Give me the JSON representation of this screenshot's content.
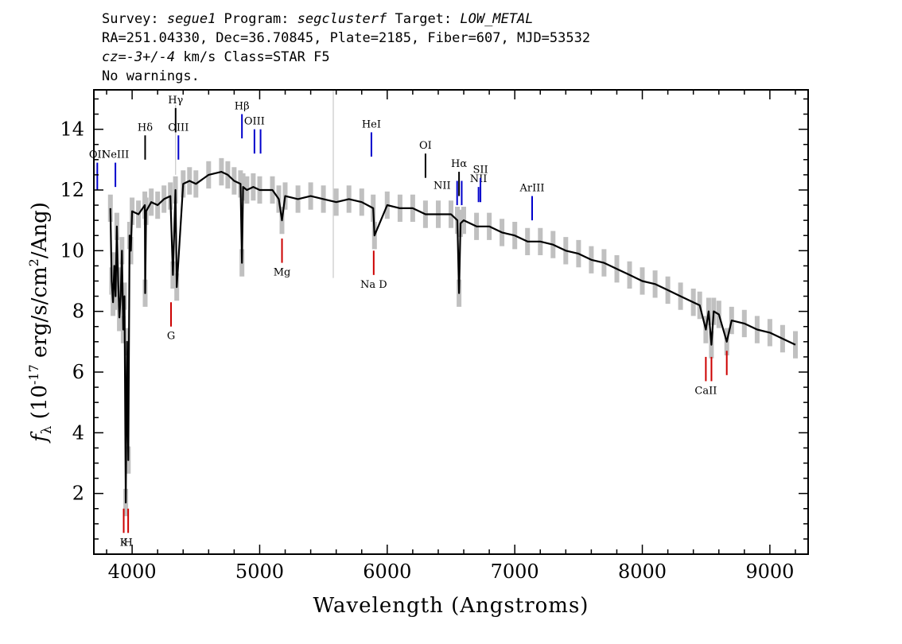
{
  "header": {
    "line1": {
      "survey_label": "Survey: ",
      "survey": "segue1",
      "program_label": " Program: ",
      "program": "segclusterf",
      "target_label": " Target: ",
      "target": "LOW_METAL"
    },
    "line2": "RA=251.04330, Dec=36.70845, Plate=2185, Fiber=607, MJD=53532",
    "line3": {
      "cz": "cz=-3+/-4",
      "rest": " km/s Class=STAR F5"
    },
    "line4": "No warnings."
  },
  "chart_data": {
    "type": "line",
    "title": "",
    "xlabel": "Wavelength (Angstroms)",
    "ylabel": "f_λ (10^-17 erg/s/cm^2/Ang)",
    "xlim": [
      3700,
      9300
    ],
    "ylim": [
      0,
      15.3
    ],
    "xticks": [
      4000,
      5000,
      6000,
      7000,
      8000,
      9000
    ],
    "yticks": [
      2,
      4,
      6,
      8,
      10,
      12,
      14
    ],
    "series": [
      {
        "color": "#000000",
        "x": [
          3830,
          3840,
          3850,
          3860,
          3870,
          3880,
          3890,
          3900,
          3910,
          3920,
          3930,
          3940,
          3950,
          3960,
          3970,
          3980,
          3990,
          4000,
          4050,
          4100,
          4102,
          4110,
          4150,
          4200,
          4250,
          4300,
          4320,
          4340,
          4350,
          4400,
          4450,
          4500,
          4600,
          4700,
          4750,
          4800,
          4850,
          4861,
          4870,
          4900,
          4950,
          5000,
          5100,
          5150,
          5175,
          5200,
          5300,
          5400,
          5500,
          5600,
          5700,
          5800,
          5890,
          5900,
          6000,
          6100,
          6200,
          6300,
          6400,
          6500,
          6550,
          6563,
          6575,
          6600,
          6700,
          6800,
          6900,
          7000,
          7100,
          7200,
          7300,
          7400,
          7500,
          7600,
          7700,
          7800,
          7900,
          8000,
          8100,
          8200,
          8300,
          8400,
          8450,
          8498,
          8520,
          8542,
          8560,
          8600,
          8662,
          8700,
          8800,
          8900,
          9000,
          9100,
          9200
        ],
        "y": [
          11.4,
          9.0,
          8.3,
          9.5,
          8.5,
          10.8,
          9.0,
          7.8,
          8.5,
          10.0,
          7.4,
          8.5,
          1.7,
          7.0,
          3.1,
          10.5,
          10.0,
          11.3,
          11.2,
          11.5,
          8.6,
          11.3,
          11.6,
          11.5,
          11.7,
          11.8,
          9.2,
          12.0,
          8.8,
          12.2,
          12.3,
          12.2,
          12.5,
          12.6,
          12.5,
          12.3,
          12.2,
          9.6,
          12.1,
          12.0,
          12.1,
          12.0,
          12.0,
          11.7,
          11.0,
          11.8,
          11.7,
          11.8,
          11.7,
          11.6,
          11.7,
          11.6,
          11.4,
          10.5,
          11.5,
          11.4,
          11.4,
          11.2,
          11.2,
          11.2,
          11.0,
          8.6,
          10.9,
          11.0,
          10.8,
          10.8,
          10.6,
          10.5,
          10.3,
          10.3,
          10.2,
          10.0,
          9.9,
          9.7,
          9.6,
          9.4,
          9.2,
          9.0,
          8.9,
          8.7,
          8.5,
          8.3,
          8.2,
          7.4,
          8.0,
          6.9,
          8.0,
          7.9,
          7.0,
          7.7,
          7.6,
          7.4,
          7.3,
          7.1,
          6.9
        ]
      }
    ],
    "line_markers": [
      {
        "label": "OII",
        "x": 3727,
        "color": "#0000cc",
        "y_top": 12.9,
        "y_bot": 12.0,
        "label_pos": "above"
      },
      {
        "label": "NeIII",
        "x": 3869,
        "color": "#0000cc",
        "y_top": 12.9,
        "y_bot": 12.1,
        "label_pos": "above"
      },
      {
        "label": "Hδ",
        "x": 4102,
        "color": "#000000",
        "y_top": 13.8,
        "y_bot": 13.0,
        "label_pos": "above"
      },
      {
        "label": "Hγ",
        "x": 4341,
        "color": "#000000",
        "y_top": 14.7,
        "y_bot": 13.9,
        "label_pos": "above"
      },
      {
        "label": "OIII",
        "x": 4363,
        "color": "#0000cc",
        "y_top": 13.8,
        "y_bot": 13.0,
        "label_pos": "above"
      },
      {
        "label": "Hβ",
        "x": 4861,
        "color": "#0000cc",
        "y_top": 14.5,
        "y_bot": 13.7,
        "label_pos": "above"
      },
      {
        "label": "OIII",
        "x": 4959,
        "color": "#0000cc",
        "y_top": 14.0,
        "y_bot": 13.2,
        "label_pos": "above"
      },
      {
        "label": "",
        "x": 5007,
        "color": "#0000cc",
        "y_top": 14.0,
        "y_bot": 13.2,
        "label_pos": "above"
      },
      {
        "label": "HeI",
        "x": 5876,
        "color": "#0000cc",
        "y_top": 13.9,
        "y_bot": 13.1,
        "label_pos": "above"
      },
      {
        "label": "OI",
        "x": 6300,
        "color": "#000000",
        "y_top": 13.2,
        "y_bot": 12.4,
        "label_pos": "above"
      },
      {
        "label": "NII",
        "x": 6548,
        "color": "#0000cc",
        "y_top": 12.3,
        "y_bot": 11.5,
        "label_pos": "left"
      },
      {
        "label": "Hα",
        "x": 6563,
        "color": "#000000",
        "y_top": 12.6,
        "y_bot": 11.8,
        "label_pos": "above"
      },
      {
        "label": "",
        "x": 6584,
        "color": "#0000cc",
        "y_top": 12.3,
        "y_bot": 11.5,
        "label_pos": "above"
      },
      {
        "label": "NII",
        "x": 6716,
        "color": "#0000cc",
        "y_top": 12.1,
        "y_bot": 11.6,
        "label_pos": "above"
      },
      {
        "label": "SII",
        "x": 6731,
        "color": "#0000cc",
        "y_top": 12.4,
        "y_bot": 11.6,
        "label_pos": "above"
      },
      {
        "label": "ArIII",
        "x": 7136,
        "color": "#0000cc",
        "y_top": 11.8,
        "y_bot": 11.0,
        "label_pos": "above"
      },
      {
        "label": "G",
        "x": 4305,
        "color": "#cc0000",
        "y_top": 8.3,
        "y_bot": 7.5,
        "label_pos": "below"
      },
      {
        "label": "Mg",
        "x": 5175,
        "color": "#cc0000",
        "y_top": 10.4,
        "y_bot": 9.6,
        "label_pos": "below"
      },
      {
        "label": "Na D",
        "x": 5894,
        "color": "#cc0000",
        "y_top": 10.0,
        "y_bot": 9.2,
        "label_pos": "below"
      },
      {
        "label": "K",
        "x": 3934,
        "color": "#cc0000",
        "y_top": 1.5,
        "y_bot": 0.7,
        "label_pos": "below"
      },
      {
        "label": "H",
        "x": 3969,
        "color": "#cc0000",
        "y_top": 1.5,
        "y_bot": 0.7,
        "label_pos": "below"
      },
      {
        "label": "CaII",
        "x": 8498,
        "color": "#cc0000",
        "y_top": 6.5,
        "y_bot": 5.7,
        "label_pos": "below"
      },
      {
        "label": "",
        "x": 8542,
        "color": "#cc0000",
        "y_top": 6.5,
        "y_bot": 5.7,
        "label_pos": "below"
      },
      {
        "label": "",
        "x": 8662,
        "color": "#cc0000",
        "y_top": 6.7,
        "y_bot": 5.9,
        "label_pos": "below"
      }
    ],
    "grid": false
  }
}
